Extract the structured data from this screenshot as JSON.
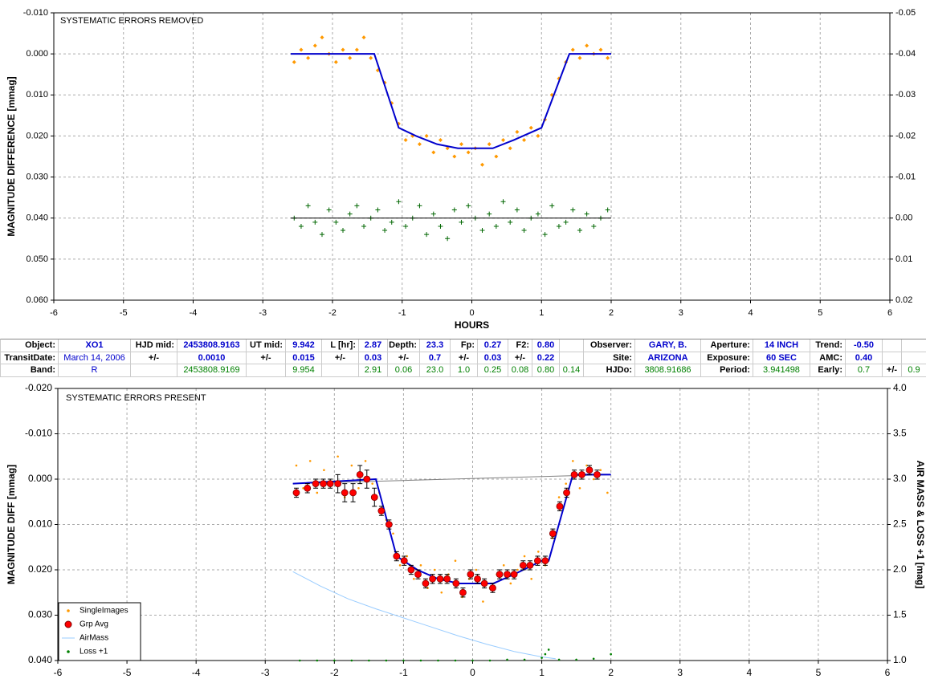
{
  "chart_data": [
    {
      "type": "scatter",
      "title": "SYSTEMATIC ERRORS REMOVED",
      "ylabel": "MAGNITUDE DIFFERENCE [mmag]",
      "xlabel": "HOURS",
      "xlim": [
        -6,
        6
      ],
      "xticks": [
        -6,
        -5,
        -4,
        -3,
        -2,
        -1,
        0,
        1,
        2,
        3,
        4,
        5,
        6
      ],
      "ylim": [
        -0.01,
        0.06
      ],
      "y_inverted": true,
      "yticks": [
        {
          "value": -0.01,
          "label": "-0.010"
        },
        {
          "value": 0,
          "label": "0.000"
        },
        {
          "value": 0.01,
          "label": "0.010"
        },
        {
          "value": 0.02,
          "label": "0.020"
        },
        {
          "value": 0.03,
          "label": "0.030"
        },
        {
          "value": 0.04,
          "label": "0.040"
        },
        {
          "value": 0.05,
          "label": "0.050"
        },
        {
          "value": 0.06,
          "label": "0.060"
        }
      ],
      "y2lim": [
        -0.05,
        0.02
      ],
      "y2_inverted": true,
      "y2ticks": [
        {
          "value": -0.05,
          "label": "-0.05"
        },
        {
          "value": -0.04,
          "label": "-0.04"
        },
        {
          "value": -0.03,
          "label": "-0.03"
        },
        {
          "value": -0.02,
          "label": "-0.02"
        },
        {
          "value": -0.01,
          "label": "-0.01"
        },
        {
          "value": 0,
          "label": "0.00"
        },
        {
          "value": 0.01,
          "label": "0.01"
        },
        {
          "value": 0.02,
          "label": "0.02"
        }
      ],
      "grid": true,
      "series": [
        {
          "marker": "diamond",
          "color": "#ff9900",
          "x": [
            -2.55,
            -2.45,
            -2.35,
            -2.25,
            -2.15,
            -2.05,
            -1.95,
            -1.85,
            -1.75,
            -1.65,
            -1.55,
            -1.45,
            -1.35,
            -1.25,
            -1.15,
            -1.05,
            -0.95,
            -0.85,
            -0.75,
            -0.65,
            -0.55,
            -0.45,
            -0.35,
            -0.25,
            -0.15,
            -0.05,
            0.05,
            0.15,
            0.25,
            0.35,
            0.45,
            0.55,
            0.65,
            0.75,
            0.85,
            0.95,
            1.05,
            1.15,
            1.25,
            1.35,
            1.45,
            1.55,
            1.65,
            1.75,
            1.85,
            1.95
          ],
          "values": [
            0.002,
            -0.001,
            0.001,
            -0.002,
            -0.004,
            0.0,
            0.002,
            -0.001,
            0.001,
            -0.001,
            -0.004,
            0.001,
            0.004,
            0.007,
            0.012,
            0.017,
            0.021,
            0.02,
            0.022,
            0.02,
            0.024,
            0.021,
            0.023,
            0.025,
            0.022,
            0.024,
            0.023,
            0.027,
            0.022,
            0.025,
            0.021,
            0.023,
            0.019,
            0.021,
            0.018,
            0.02,
            0.016,
            0.01,
            0.006,
            0.002,
            -0.001,
            0.001,
            -0.002,
            0.0,
            -0.001,
            0.001
          ]
        },
        {
          "marker": "line",
          "color": "#0000cc",
          "x": [
            -2.6,
            -1.4,
            -1.05,
            -0.8,
            -0.5,
            -0.2,
            0.3,
            0.6,
            1.0,
            1.4,
            2.0
          ],
          "values": [
            0,
            0,
            0.018,
            0.02,
            0.022,
            0.023,
            0.023,
            0.021,
            0.018,
            0,
            0
          ]
        },
        {
          "marker": "cross",
          "color": "#006600",
          "axis": "y2",
          "x": [
            -2.55,
            -2.45,
            -2.35,
            -2.25,
            -2.15,
            -2.05,
            -1.95,
            -1.85,
            -1.75,
            -1.65,
            -1.55,
            -1.45,
            -1.35,
            -1.25,
            -1.15,
            -1.05,
            -0.95,
            -0.85,
            -0.75,
            -0.65,
            -0.55,
            -0.45,
            -0.35,
            -0.25,
            -0.15,
            -0.05,
            0.05,
            0.15,
            0.25,
            0.35,
            0.45,
            0.55,
            0.65,
            0.75,
            0.85,
            0.95,
            1.05,
            1.15,
            1.25,
            1.35,
            1.45,
            1.55,
            1.65,
            1.75,
            1.85,
            1.95
          ],
          "values": [
            0.0,
            0.002,
            -0.003,
            0.001,
            0.004,
            -0.002,
            0.001,
            0.003,
            -0.001,
            -0.003,
            0.002,
            0.0,
            -0.002,
            0.003,
            0.001,
            -0.004,
            0.002,
            0.0,
            -0.003,
            0.004,
            -0.001,
            0.002,
            0.005,
            -0.002,
            0.001,
            -0.003,
            0.0,
            0.003,
            -0.001,
            0.002,
            -0.004,
            0.001,
            -0.002,
            0.003,
            0.0,
            -0.001,
            0.004,
            -0.003,
            0.002,
            0.001,
            -0.002,
            0.003,
            -0.001,
            0.002,
            0.0,
            -0.002
          ]
        },
        {
          "marker": "line",
          "color": "#000000",
          "axis": "y2",
          "x": [
            -2.6,
            2.0
          ],
          "values": [
            0,
            0
          ]
        }
      ]
    },
    {
      "type": "scatter",
      "title": "SYSTEMATIC ERRORS PRESENT",
      "ylabel": "MAGNITUDE DIFF [mmag]",
      "y2label": "AIR MASS & LOSS +1 [mag]",
      "xlim": [
        -6,
        6
      ],
      "xticks": [
        -6,
        -5,
        -4,
        -3,
        -2,
        -1,
        0,
        1,
        2,
        3,
        4,
        5,
        6
      ],
      "ylim": [
        -0.02,
        0.04
      ],
      "y_inverted": true,
      "yticks": [
        {
          "value": -0.02,
          "label": "-0.020"
        },
        {
          "value": -0.01,
          "label": "-0.010"
        },
        {
          "value": 0,
          "label": "0.000"
        },
        {
          "value": 0.01,
          "label": "0.010"
        },
        {
          "value": 0.02,
          "label": "0.020"
        },
        {
          "value": 0.03,
          "label": "0.030"
        },
        {
          "value": 0.04,
          "label": "0.040"
        }
      ],
      "y2lim": [
        1.0,
        4.0
      ],
      "y2_inverted": false,
      "y2ticks": [
        {
          "value": 1.0,
          "label": "1.0"
        },
        1.5,
        {
          "value": 2.0,
          "label": "2.0"
        },
        2.5,
        {
          "value": 3.0,
          "label": "3.0"
        },
        3.5,
        {
          "value": 4.0,
          "label": "4.0"
        }
      ],
      "grid": true,
      "legend": "lower left",
      "series": [
        {
          "name": "SingleImages",
          "marker": "dot",
          "color": "#ff9900",
          "x": [
            -2.55,
            -2.45,
            -2.35,
            -2.25,
            -2.15,
            -2.05,
            -1.95,
            -1.85,
            -1.75,
            -1.65,
            -1.55,
            -1.45,
            -1.35,
            -1.25,
            -1.15,
            -1.05,
            -0.95,
            -0.85,
            -0.75,
            -0.65,
            -0.55,
            -0.45,
            -0.35,
            -0.25,
            -0.15,
            -0.05,
            0.05,
            0.15,
            0.25,
            0.35,
            0.45,
            0.55,
            0.65,
            0.75,
            0.85,
            0.95,
            1.05,
            1.15,
            1.25,
            1.35,
            1.45,
            1.55,
            1.65,
            1.75,
            1.85,
            1.95
          ],
          "values": [
            -0.003,
            0.002,
            -0.004,
            0.003,
            -0.002,
            0.001,
            -0.005,
            0.004,
            -0.003,
            0.002,
            -0.004,
            0.001,
            0.003,
            0.009,
            0.012,
            0.019,
            0.017,
            0.022,
            0.019,
            0.024,
            0.02,
            0.025,
            0.021,
            0.018,
            0.026,
            0.022,
            0.02,
            0.027,
            0.024,
            0.021,
            0.019,
            0.023,
            0.02,
            0.017,
            0.022,
            0.016,
            0.019,
            0.013,
            0.004,
            0.001,
            -0.004,
            0.002,
            -0.003,
            0.0,
            -0.002,
            0.003
          ]
        },
        {
          "marker": "line",
          "color": "#808080",
          "x": [
            -2.6,
            2.0
          ],
          "values": [
            0.001,
            -0.001
          ]
        },
        {
          "marker": "line",
          "color": "#0000cc",
          "x": [
            -2.6,
            -1.4,
            -1.1,
            -0.8,
            -0.5,
            -0.2,
            0.3,
            0.6,
            1.0,
            1.1,
            1.45,
            2.0
          ],
          "values": [
            0.001,
            0,
            0.017,
            0.02,
            0.022,
            0.023,
            0.023,
            0.021,
            0.018,
            0.018,
            -0.001,
            -0.001
          ]
        },
        {
          "name": "Grp Avg",
          "marker": "circle",
          "color": "#ff0000",
          "x": [
            -2.55,
            -2.39,
            -2.27,
            -2.16,
            -2.06,
            -1.95,
            -1.85,
            -1.73,
            -1.63,
            -1.53,
            -1.42,
            -1.32,
            -1.21,
            -1.1,
            -0.99,
            -0.89,
            -0.79,
            -0.68,
            -0.58,
            -0.47,
            -0.37,
            -0.24,
            -0.14,
            -0.03,
            0.07,
            0.17,
            0.29,
            0.39,
            0.5,
            0.6,
            0.73,
            0.83,
            0.94,
            1.05,
            1.16,
            1.26,
            1.36,
            1.47,
            1.58,
            1.69,
            1.8
          ],
          "values": [
            0.003,
            0.002,
            0.001,
            0.001,
            0.001,
            0.001,
            0.003,
            0.003,
            -0.001,
            0.0,
            0.004,
            0.007,
            0.01,
            0.017,
            0.018,
            0.02,
            0.021,
            0.023,
            0.022,
            0.022,
            0.022,
            0.023,
            0.025,
            0.021,
            0.022,
            0.023,
            0.024,
            0.021,
            0.021,
            0.021,
            0.019,
            0.019,
            0.018,
            0.018,
            0.012,
            0.006,
            0.003,
            -0.001,
            -0.001,
            -0.002,
            -0.001
          ],
          "errors": [
            0.001,
            0.001,
            0.001,
            0.001,
            0.001,
            0.002,
            0.002,
            0.002,
            0.002,
            0.002,
            0.002,
            0.001,
            0.001,
            0.001,
            0.001,
            0.001,
            0.001,
            0.001,
            0.001,
            0.001,
            0.001,
            0.001,
            0.001,
            0.001,
            0.001,
            0.001,
            0.001,
            0.001,
            0.001,
            0.001,
            0.001,
            0.001,
            0.001,
            0.001,
            0.001,
            0.001,
            0.001,
            0.001,
            0.001,
            0.001,
            0.001
          ]
        },
        {
          "name": "AirMass",
          "marker": "line",
          "color": "#99ccff",
          "axis": "y2",
          "x": [
            -2.6,
            -2.2,
            -1.8,
            -1.4,
            -1.0,
            -0.6,
            -0.2,
            0.2,
            0.6,
            1.0,
            1.2
          ],
          "values": [
            1.98,
            1.82,
            1.68,
            1.57,
            1.47,
            1.37,
            1.27,
            1.18,
            1.1,
            1.04,
            1.02
          ]
        },
        {
          "name": "Loss +1",
          "marker": "dot",
          "color": "#008000",
          "axis": "y2",
          "x": [
            -2.5,
            -2.25,
            -2.0,
            -1.75,
            -1.5,
            -1.25,
            -1.0,
            -0.75,
            -0.5,
            -0.25,
            0,
            0.25,
            0.5,
            0.75,
            1.0,
            1.05,
            1.1,
            1.25,
            1.5,
            1.75,
            2.0
          ],
          "values": [
            1.0,
            1.0,
            1.0,
            1.0,
            1.0,
            1.0,
            1.0,
            1.0,
            1.0,
            1.0,
            1.0,
            1.0,
            1.01,
            1.01,
            1.03,
            1.07,
            1.12,
            1.01,
            1.01,
            1.02,
            1.07
          ]
        }
      ]
    }
  ],
  "table": {
    "rows": [
      [
        "Object:",
        "XO1",
        "HJD mid:",
        "2453808.9163",
        "UT mid:",
        "9.942",
        "L [hr]:",
        "2.87",
        "Depth:",
        "23.3",
        "Fp:",
        "0.27",
        "F2:",
        "0.80",
        null,
        "Observer:",
        "GARY, B.",
        "Aperture:",
        "14 INCH",
        "Trend:",
        "-0.50",
        null,
        null
      ],
      [
        "TransitDate:",
        "March 14, 2006",
        "+/-",
        "0.0010",
        "+/-",
        "0.015",
        "+/-",
        "0.03",
        "+/-",
        "0.7",
        "+/-",
        "0.03",
        "+/-",
        "0.22",
        null,
        "Site:",
        "ARIZONA",
        "Exposure:",
        "60 SEC",
        "AMC:",
        "0.40",
        null,
        null
      ],
      [
        "Band:",
        "R",
        null,
        "2453808.9169",
        null,
        "9.954",
        null,
        "2.91",
        "0.06",
        "23.0",
        "1.0",
        "0.25",
        "0.08",
        "0.80",
        "0.14",
        "HJDo:",
        "3808.91686",
        "Period:",
        "3.941498",
        "Early:",
        "0.7",
        "+/-",
        "0.9"
      ]
    ]
  }
}
